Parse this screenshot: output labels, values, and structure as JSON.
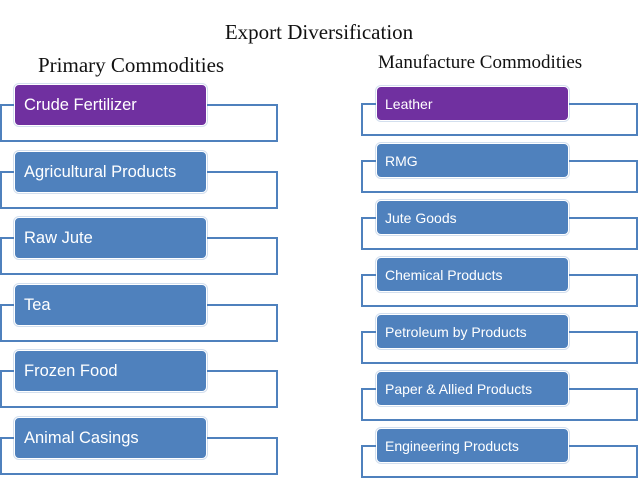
{
  "title": "Export Diversification",
  "primary": {
    "heading": "Primary  Commodities",
    "items": [
      {
        "label": "Crude Fertilizer"
      },
      {
        "label": "Agricultural Products"
      },
      {
        "label": "Raw Jute"
      },
      {
        "label": "Tea"
      },
      {
        "label": "Frozen Food"
      },
      {
        "label": "Animal Casings"
      }
    ]
  },
  "manufacture": {
    "heading": "Manufacture Commodities",
    "items": [
      {
        "label": "Leather"
      },
      {
        "label": "RMG"
      },
      {
        "label": "Jute Goods"
      },
      {
        "label": "Chemical Products"
      },
      {
        "label": "Petroleum by Products"
      },
      {
        "label": "Paper & Allied Products"
      },
      {
        "label": "Engineering Products"
      }
    ]
  },
  "colors": {
    "item_blue": "#4f81bd",
    "highlight_purple": "#7030a0",
    "frame_blue": "#4f81bd",
    "text_white": "#ffffff"
  }
}
